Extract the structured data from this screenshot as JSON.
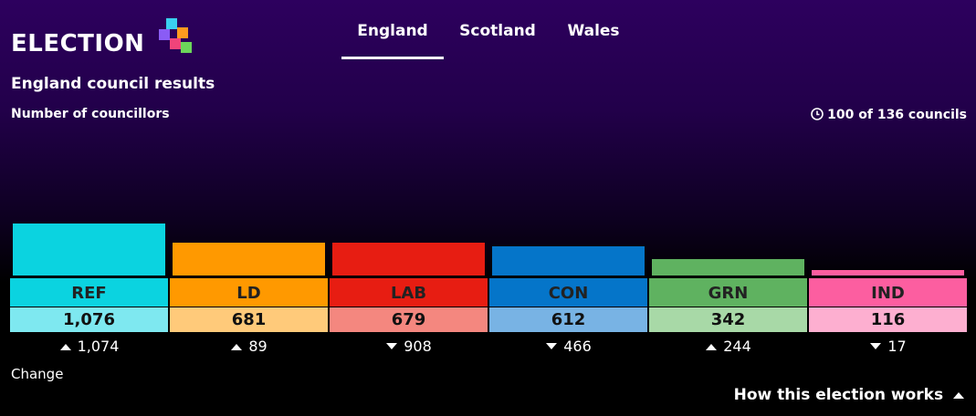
{
  "header": {
    "logo": "ELECTION",
    "tabs": [
      "England",
      "Scotland",
      "Wales"
    ],
    "active_tab": 0
  },
  "chart_data": {
    "type": "bar",
    "title": "England council results",
    "subtitle": "Number of councillors",
    "progress": "100 of 136 councils",
    "categories": [
      "REF",
      "LD",
      "LAB",
      "CON",
      "GRN",
      "IND"
    ],
    "values": [
      1076,
      681,
      679,
      612,
      342,
      116
    ],
    "value_labels": [
      "1,076",
      "681",
      "679",
      "612",
      "342",
      "116"
    ],
    "colors": [
      "#0bd3e0",
      "#ff9900",
      "#e71d12",
      "#0575c9",
      "#5fb260",
      "#fc5ea0"
    ],
    "light_colors": [
      "#7ee8f0",
      "#ffca7a",
      "#f4877f",
      "#78b3e4",
      "#a8d9a7",
      "#fdafd0"
    ],
    "change": {
      "label": "Change",
      "values": [
        1074,
        89,
        -908,
        -466,
        244,
        -17
      ],
      "value_labels": [
        "1,074",
        "89",
        "908",
        "466",
        "244",
        "17"
      ]
    }
  },
  "footer": {
    "link": "How this election works"
  }
}
